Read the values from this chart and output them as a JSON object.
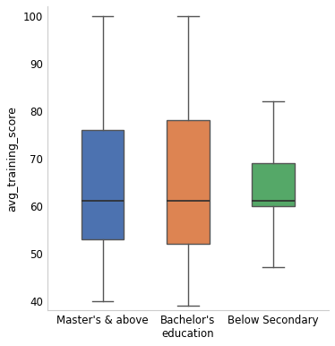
{
  "categories": [
    "Master's & above",
    "Bachelor's\neducation",
    "Below Secondary"
  ],
  "colors": [
    "#4c72b0",
    "#dd8452",
    "#55a868"
  ],
  "boxes": [
    {
      "whislo": 40,
      "q1": 53,
      "med": 61,
      "q3": 76,
      "whishi": 100
    },
    {
      "whislo": 39,
      "q1": 52,
      "med": 61,
      "q3": 78,
      "whishi": 100
    },
    {
      "whislo": 47,
      "q1": 60,
      "med": 61,
      "q3": 69,
      "whishi": 82
    }
  ],
  "ylabel": "avg_training_score",
  "ylim": [
    38,
    102
  ],
  "yticks": [
    40,
    50,
    60,
    70,
    80,
    90,
    100
  ],
  "figsize": [
    3.74,
    3.86
  ],
  "dpi": 100,
  "bg_color": "#ffffff",
  "spine_color": "#cccccc",
  "whisker_color": "#555555",
  "median_color": "#2d2d2d"
}
